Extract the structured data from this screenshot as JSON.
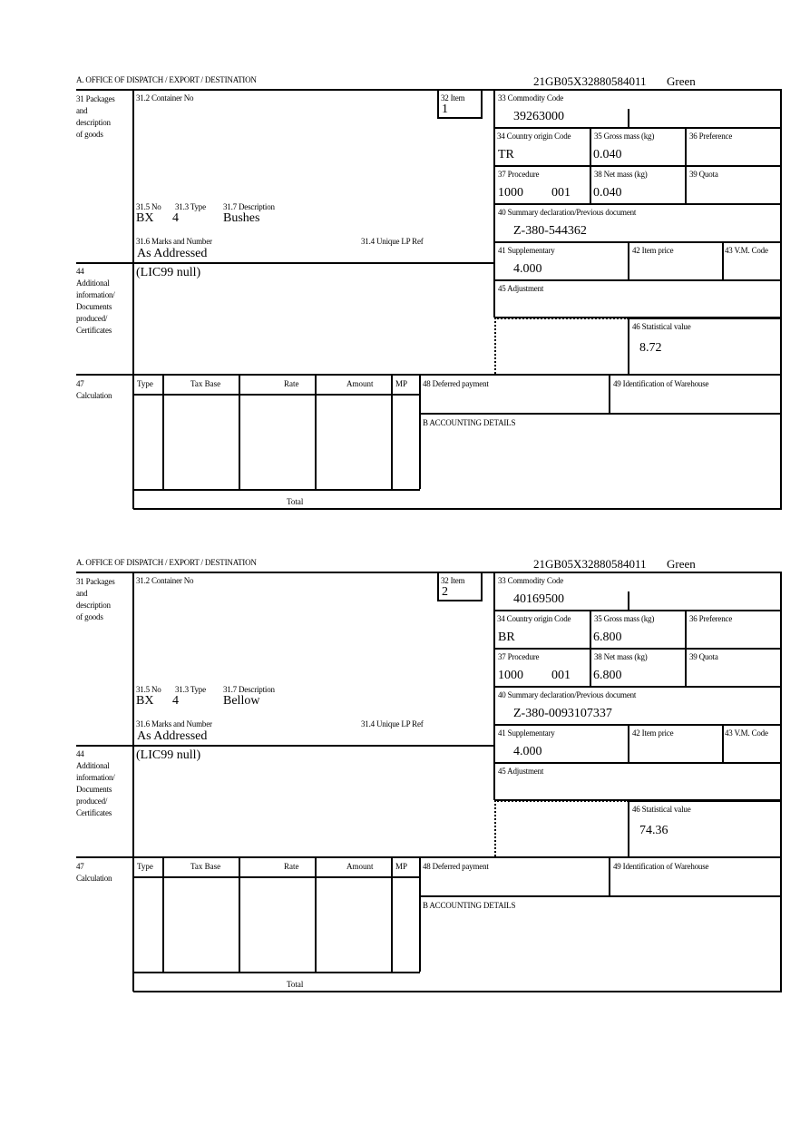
{
  "labels": {
    "office": "A.  OFFICE OF DISPATCH / EXPORT / DESTINATION",
    "packages": "31 Packages\nand\ndescription\nof goods",
    "container_no": "31.2 Container No",
    "item": "32 Item",
    "no": "31.5 No",
    "type": "31.3 Type",
    "description": "31.7 Description",
    "marks": "31.6 Marks and Number",
    "unique_lp_ref": "31.4 Unique LP Ref",
    "commodity_code": "33 Commodity Code",
    "country_origin": "34 Country origin Code",
    "gross_mass": "35 Gross mass (kg)",
    "preference": "36 Preference",
    "procedure": "37 Procedure",
    "net_mass": "38 Net mass (kg)",
    "quota": "39 Quota",
    "summary_declaration": "40 Summary declaration/Previous document",
    "supplementary": "41 Supplementary",
    "item_price": "42 Item price",
    "vm_code": "43 V.M. Code",
    "additional_info": "44\nAdditional\ninformation/\nDocuments\nproduced/\nCertificates",
    "adjustment": "45 Adjustment",
    "statistical_value": "46 Statistical value",
    "calculation": "47\nCalculation",
    "calc_type": "Type",
    "tax_base": "Tax Base",
    "rate": "Rate",
    "amount": "Amount",
    "mp": "MP",
    "total": "Total",
    "deferred_payment": "48 Deferred payment",
    "warehouse": "49 Identification of Warehouse",
    "accounting": "B ACCOUNTING DETAILS"
  },
  "forms": [
    {
      "reference": "21GB05X32880584011",
      "route": "Green",
      "item": "1",
      "package_no": "BX",
      "package_type": "4",
      "description": "Bushes",
      "marks": "As Addressed",
      "commodity_code": "39263000",
      "country_origin": "TR",
      "gross_mass": "0.040",
      "procedure": "1000",
      "procedure_additional": "001",
      "net_mass": "0.040",
      "summary_declaration": "Z-380-544362",
      "supplementary": "4.000",
      "additional_info": "(LIC99 null)",
      "statistical_value": "8.72"
    },
    {
      "reference": "21GB05X32880584011",
      "route": "Green",
      "item": "2",
      "package_no": "BX",
      "package_type": "4",
      "description": "Bellow",
      "marks": "As Addressed",
      "commodity_code": "40169500",
      "country_origin": "BR",
      "gross_mass": "6.800",
      "procedure": "1000",
      "procedure_additional": "001",
      "net_mass": "6.800",
      "summary_declaration": "Z-380-0093107337",
      "supplementary": "4.000",
      "additional_info": "(LIC99 null)",
      "statistical_value": "74.36"
    }
  ]
}
